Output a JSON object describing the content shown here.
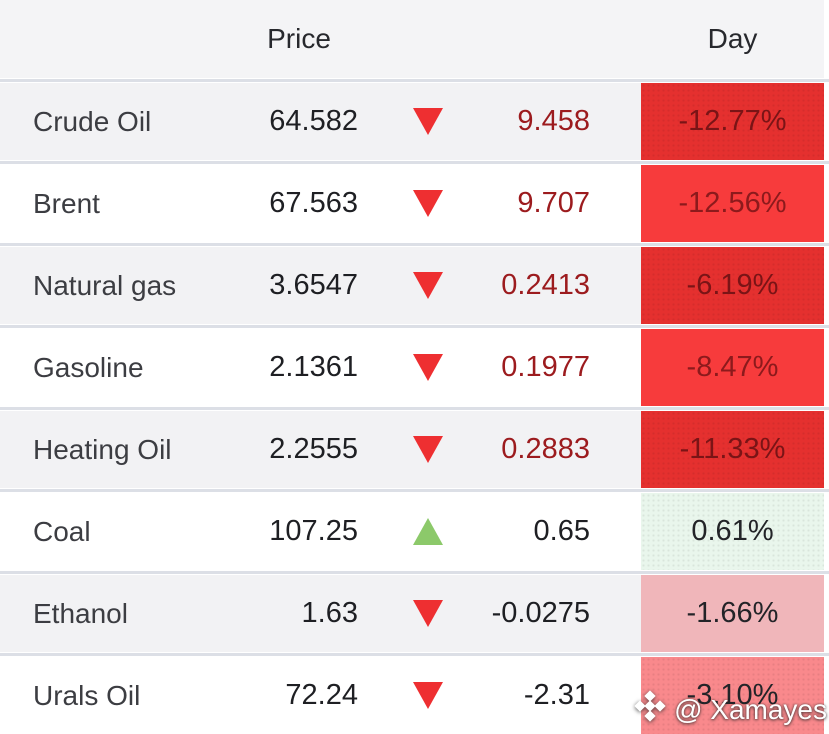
{
  "header": {
    "price_label": "Price",
    "day_label": "Day"
  },
  "watermark": {
    "text": "@ Xamayes",
    "icon": "diamond-logo-icon",
    "text_color": "#ffffff"
  },
  "colors": {
    "header_bg": "#f4f4f6",
    "row_alt_bg": "#f2f2f4",
    "row_bg": "#ffffff",
    "divider": "#dcdfe6",
    "name_text": "#3c3d42",
    "price_text": "#1e1f23",
    "header_text": "#27282d",
    "arrow_down": "#ee2f31",
    "arrow_up": "#8cc96a",
    "change_negative_text": "#9c1b1e",
    "change_neutral_text": "#1e1f23",
    "day_strong_red_dark": "#e5302f",
    "day_strong_red_bright": "#f73b3c",
    "day_light_green": "#e9f6ec",
    "day_light_pink": "#f0b6ba",
    "day_salmon": "#f9898c"
  },
  "rows": [
    {
      "name": "Crude Oil",
      "price": "64.582",
      "direction": "down",
      "change": "9.458",
      "day": "-12.77%",
      "row_bg": "#f2f2f4",
      "change_color": "#9c1b1e",
      "day_bg": "#e5302f",
      "day_color": "#7a1416",
      "dots": true
    },
    {
      "name": "Brent",
      "price": "67.563",
      "direction": "down",
      "change": "9.707",
      "day": "-12.56%",
      "row_bg": "#ffffff",
      "change_color": "#9c1b1e",
      "day_bg": "#f73b3c",
      "day_color": "#8c1a1c",
      "dots": false
    },
    {
      "name": "Natural gas",
      "price": "3.6547",
      "direction": "down",
      "change": "0.2413",
      "day": "-6.19%",
      "row_bg": "#f2f2f4",
      "change_color": "#9c1b1e",
      "day_bg": "#e5302f",
      "day_color": "#7a1416",
      "dots": true
    },
    {
      "name": "Gasoline",
      "price": "2.1361",
      "direction": "down",
      "change": "0.1977",
      "day": "-8.47%",
      "row_bg": "#ffffff",
      "change_color": "#9c1b1e",
      "day_bg": "#f73b3c",
      "day_color": "#8c1a1c",
      "dots": false
    },
    {
      "name": "Heating Oil",
      "price": "2.2555",
      "direction": "down",
      "change": "0.2883",
      "day": "-11.33%",
      "row_bg": "#f2f2f4",
      "change_color": "#9c1b1e",
      "day_bg": "#e5302f",
      "day_color": "#7a1416",
      "dots": true
    },
    {
      "name": "Coal",
      "price": "107.25",
      "direction": "up",
      "change": "0.65",
      "day": "0.61%",
      "row_bg": "#ffffff",
      "change_color": "#1e1f23",
      "day_bg": "#e9f6ec",
      "day_color": "#232428",
      "dots": true
    },
    {
      "name": "Ethanol",
      "price": "1.63",
      "direction": "down",
      "change": "-0.0275",
      "day": "-1.66%",
      "row_bg": "#f2f2f4",
      "change_color": "#1e1f23",
      "day_bg": "#f0b6ba",
      "day_color": "#232428",
      "dots": false
    },
    {
      "name": "Urals Oil",
      "price": "72.24",
      "direction": "down",
      "change": "-2.31",
      "day": "-3.10%",
      "row_bg": "#ffffff",
      "change_color": "#1e1f23",
      "day_bg": "#f9898c",
      "day_color": "#232428",
      "dots": true
    }
  ]
}
